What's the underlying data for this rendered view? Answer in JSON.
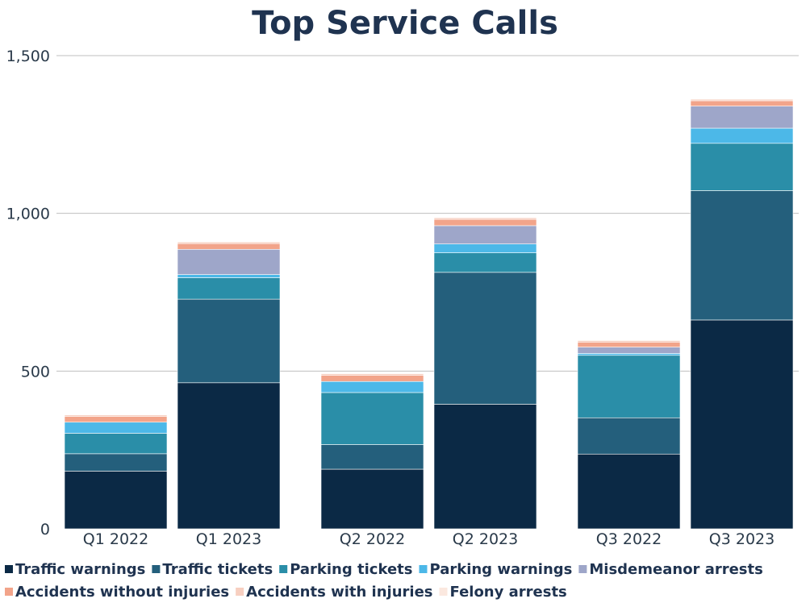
{
  "chart_data": {
    "type": "bar",
    "stacked": true,
    "title": "Top Service Calls",
    "xlabel": "",
    "ylabel": "",
    "ylim": [
      0,
      1500
    ],
    "yticks": [
      0,
      500,
      1000,
      1500
    ],
    "ytick_labels": [
      "0",
      "500",
      "1,000",
      "1,500"
    ],
    "grid": true,
    "legend_position": "bottom",
    "categories": [
      "Q1 2022",
      "Q1 2023",
      "Q2 2022",
      "Q2 2023",
      "Q3 2022",
      "Q3 2023"
    ],
    "series": [
      {
        "name": "Traffic warnings",
        "color": "#0b2945",
        "values": [
          183,
          463,
          189,
          395,
          237,
          662
        ]
      },
      {
        "name": "Traffic tickets",
        "color": "#245f7c",
        "values": [
          55,
          265,
          78,
          418,
          115,
          410
        ]
      },
      {
        "name": "Parking tickets",
        "color": "#2a8ea8",
        "values": [
          65,
          68,
          165,
          62,
          198,
          150
        ]
      },
      {
        "name": "Parking warnings",
        "color": "#4cb8e8",
        "values": [
          35,
          10,
          35,
          28,
          6,
          48
        ]
      },
      {
        "name": "Misdemeanor arrests",
        "color": "#9ea6c9",
        "values": [
          0,
          80,
          0,
          58,
          20,
          70
        ]
      },
      {
        "name": "Accidents without injuries",
        "color": "#f2a48a",
        "values": [
          18,
          18,
          20,
          20,
          16,
          17
        ]
      },
      {
        "name": "Accidents with injuries",
        "color": "#f7cfc0",
        "values": [
          5,
          5,
          5,
          5,
          5,
          5
        ]
      },
      {
        "name": "Felony arrests",
        "color": "#fbe8df",
        "values": [
          1,
          1,
          1,
          1,
          1,
          1
        ]
      }
    ]
  }
}
